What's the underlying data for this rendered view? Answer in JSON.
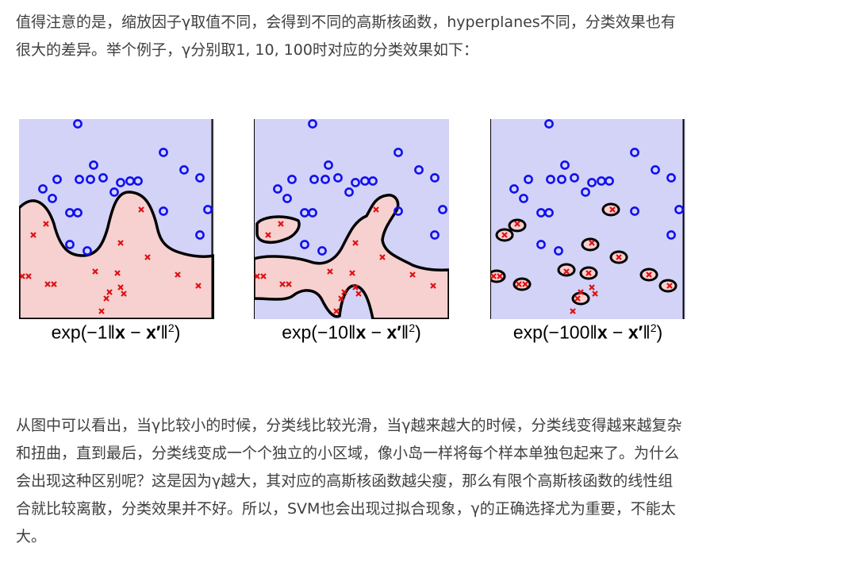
{
  "paragraph1": {
    "line1": "值得注意的是，缩放因子γ取值不同，会得到不同的高斯核函数，hyperplanes不同，分类效果也有",
    "line2": "很大的差异。举个例子，γ分别取1, 10, 100时对应的分类效果如下："
  },
  "figures": [
    {
      "caption_prefix": "exp(−1‖",
      "caption_x": "x",
      "caption_mid": " − ",
      "caption_xp": "x′",
      "caption_suffix": "‖",
      "caption_exp": "2",
      "caption_close": ")"
    },
    {
      "caption_prefix": "exp(−10‖",
      "caption_x": "x",
      "caption_mid": " − ",
      "caption_xp": "x′",
      "caption_suffix": "‖",
      "caption_exp": "2",
      "caption_close": ")"
    },
    {
      "caption_prefix": "exp(−100‖",
      "caption_x": "x",
      "caption_mid": " − ",
      "caption_xp": "x′",
      "caption_suffix": "‖",
      "caption_exp": "2",
      "caption_close": ")"
    }
  ],
  "colors": {
    "positive_region": "#d3d3f7",
    "negative_region": "#f7d0d0",
    "circle_marker": "#1010ee",
    "cross_marker": "#e01010",
    "boundary": "#000000"
  },
  "paragraph2": {
    "line1": "从图中可以看出，当γ比较小的时候，分类线比较光滑，当γ越来越大的时候，分类线变得越来越复杂",
    "line2": "和扭曲，直到最后，分类线变成一个个独立的小区域，像小岛一样将每个样本单独包起来了。为什么",
    "line3": "会出现这种区别呢？这是因为γ越大，其对应的高斯核函数越尖瘦，那么有限个高斯核函数的线性组",
    "line4": "合就比较离散，分类效果并不好。所以，SVM也会出现过拟合现象，γ的正确选择尤为重要，不能太",
    "line5": "大。"
  }
}
